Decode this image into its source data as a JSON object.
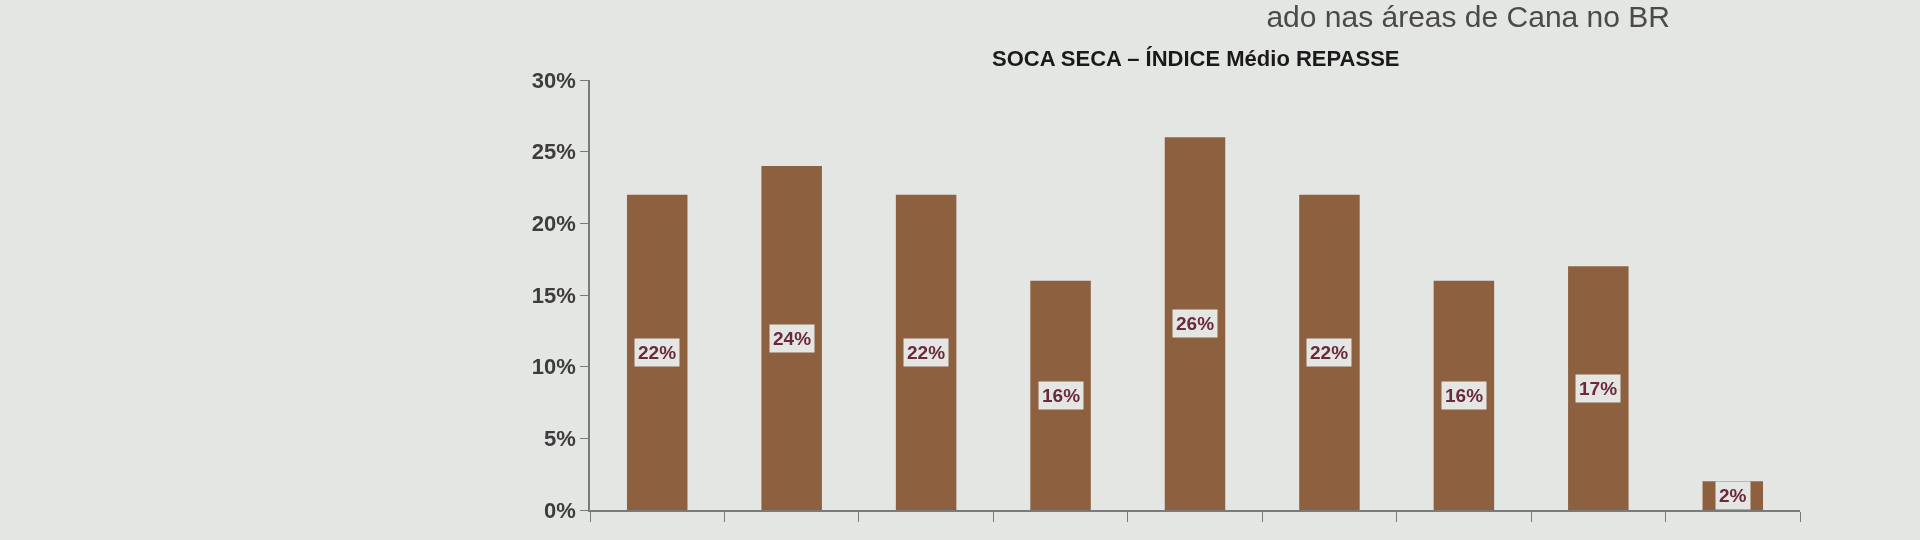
{
  "chart_data": {
    "type": "bar",
    "title": "ado nas áreas de Cana no BR",
    "subtitle": "SOCA SECA – ÍNDICE Médio REPASSE",
    "categories": [
      null,
      null,
      null,
      null,
      null,
      null,
      null,
      null,
      null
    ],
    "values": [
      22,
      24,
      22,
      16,
      26,
      22,
      16,
      17,
      2
    ],
    "value_labels": [
      "22%",
      "24%",
      "22%",
      "16%",
      "26%",
      "22%",
      "16%",
      "17%",
      "2%"
    ],
    "color": "#8d6040",
    "ylim": [
      0,
      30
    ],
    "yticks": [
      {
        "value": 0,
        "label": "0%"
      },
      {
        "value": 5,
        "label": "5%"
      },
      {
        "value": 10,
        "label": "10%"
      },
      {
        "value": 15,
        "label": "15%"
      },
      {
        "value": 20,
        "label": "20%"
      },
      {
        "value": 25,
        "label": "25%"
      },
      {
        "value": 30,
        "label": "30%"
      }
    ],
    "grid": false,
    "tick_labels": "y"
  }
}
